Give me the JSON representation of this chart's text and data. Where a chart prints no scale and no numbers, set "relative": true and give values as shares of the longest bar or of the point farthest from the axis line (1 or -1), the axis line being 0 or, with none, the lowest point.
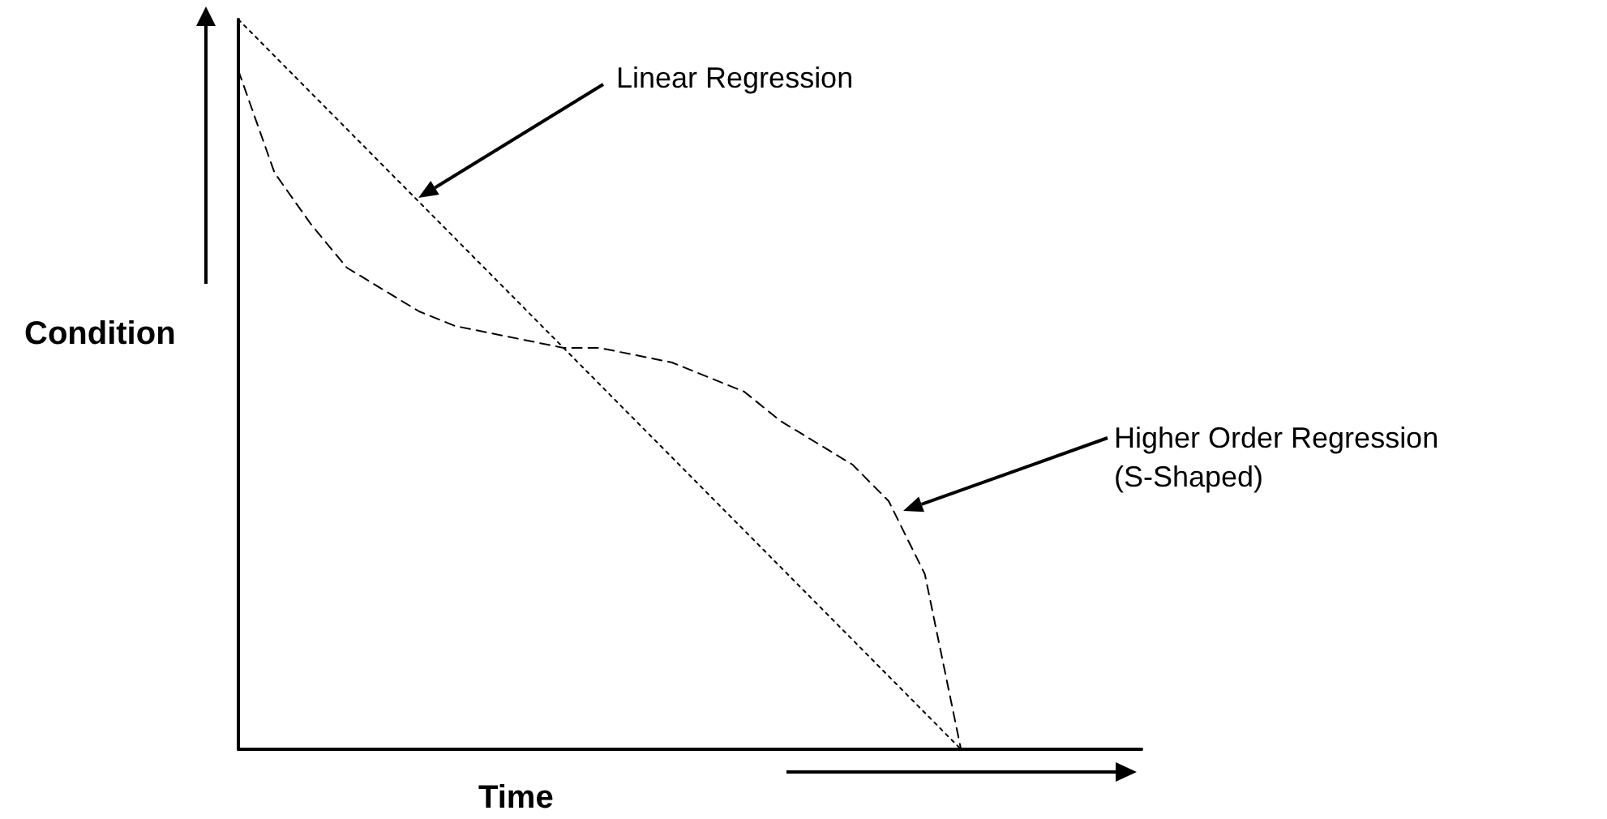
{
  "chart_data": {
    "type": "line",
    "relative": true,
    "xlabel": "Time",
    "ylabel": "Condition",
    "categories": [
      null,
      null,
      null,
      null,
      null,
      null,
      null,
      null,
      null,
      null,
      null,
      null,
      null,
      null,
      null,
      null,
      null,
      null,
      null,
      null,
      null,
      null,
      null,
      null,
      null,
      null
    ],
    "series": [
      {
        "color": "#000000",
        "line_style": "dotted",
        "values": [
          1,
          0.95,
          0.9,
          0.85,
          0.8,
          0.75,
          0.7,
          0.65,
          0.6,
          0.55,
          0.5,
          0.45,
          0.4,
          0.35,
          0.3,
          0.25,
          0.2,
          0.15,
          0.1,
          0.05,
          0,
          null,
          null,
          null,
          null,
          null
        ]
      },
      {
        "color": "#000000",
        "line_style": "dashed",
        "values": [
          0.93,
          0.79,
          0.72,
          0.66,
          0.63,
          0.6,
          0.58,
          0.57,
          0.56,
          0.55,
          0.55,
          0.54,
          0.53,
          0.51,
          0.49,
          0.45,
          0.42,
          0.39,
          0.34,
          0.24,
          0,
          null,
          null,
          null,
          null,
          null
        ]
      }
    ],
    "annotations": [
      "Linear Regression",
      "Higher Order Regression\n(S-Shaped)"
    ],
    "grid": false,
    "marker": "none"
  }
}
